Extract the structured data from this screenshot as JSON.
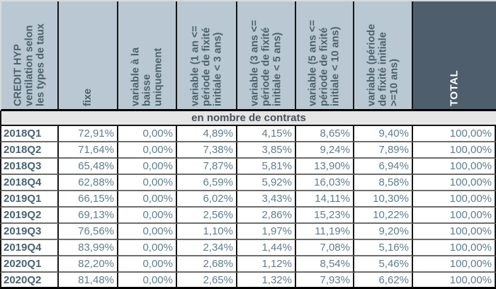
{
  "chart_data": {
    "type": "table",
    "title": "CREDIT HYP ventilation selon les types de taux",
    "corner_header": "CREDIT HYP\nventilation selon\nles types de taux",
    "column_headers": [
      "fixe",
      "variable à la\nbaisse\nuniquement",
      "variable (1 an <=\npériode de fixité\ninitiale < 3 ans)",
      "variable (3 ans <=\npériode de fixité\ninitiale < 5 ans)",
      "variable (5 ans <=\npériode de fixité\ninitiale < 10 ans)",
      "variable (période\nde fixité initiale\n>=10 ans)",
      "TOTAL"
    ],
    "section_header": "en nombre de contrats",
    "rows": [
      {
        "label": "2018Q1",
        "values": [
          "72,91%",
          "0,00%",
          "4,89%",
          "4,15%",
          "8,65%",
          "9,40%",
          "100,00%"
        ]
      },
      {
        "label": "2018Q2",
        "values": [
          "71,64%",
          "0,00%",
          "7,38%",
          "3,85%",
          "9,24%",
          "7,89%",
          "100,00%"
        ]
      },
      {
        "label": "2018Q3",
        "values": [
          "65,48%",
          "0,00%",
          "7,87%",
          "5,81%",
          "13,90%",
          "6,94%",
          "100,00%"
        ]
      },
      {
        "label": "2018Q4",
        "values": [
          "62,88%",
          "0,00%",
          "6,59%",
          "5,92%",
          "16,03%",
          "8,58%",
          "100,00%"
        ]
      },
      {
        "label": "2019Q1",
        "values": [
          "66,15%",
          "0,00%",
          "6,02%",
          "3,43%",
          "14,11%",
          "10,30%",
          "100,00%"
        ]
      },
      {
        "label": "2019Q2",
        "values": [
          "69,13%",
          "0,00%",
          "2,56%",
          "2,86%",
          "15,23%",
          "10,22%",
          "100,00%"
        ]
      },
      {
        "label": "2019Q3",
        "values": [
          "76,56%",
          "0,00%",
          "1,10%",
          "1,97%",
          "11,19%",
          "9,20%",
          "100,00%"
        ]
      },
      {
        "label": "2019Q4",
        "values": [
          "83,99%",
          "0,00%",
          "2,34%",
          "1,44%",
          "7,08%",
          "5,16%",
          "100,00%"
        ]
      },
      {
        "label": "2020Q1",
        "values": [
          "82,20%",
          "0,00%",
          "2,68%",
          "1,12%",
          "8,54%",
          "5,46%",
          "100,00%"
        ]
      },
      {
        "label": "2020Q2",
        "values": [
          "81,48%",
          "0,00%",
          "2,65%",
          "1,32%",
          "7,93%",
          "6,62%",
          "100,00%"
        ]
      }
    ],
    "layout_hints": {
      "header_rotation_degrees": -90,
      "grid": "on",
      "value_format": "percent-comma-decimal"
    }
  },
  "colors": {
    "header_bg": "#b9c8d2",
    "header_text": "#4c626f",
    "total_header_bg": "#4e5e6c",
    "total_header_text": "#ffffff",
    "data_text": "#5f7d90",
    "row_label_text": "#4a6373",
    "section_bg": "#e5e5e5",
    "section_text": "#47525c",
    "grid_dark": "#151515",
    "row_separator": "#6e6e6e"
  }
}
